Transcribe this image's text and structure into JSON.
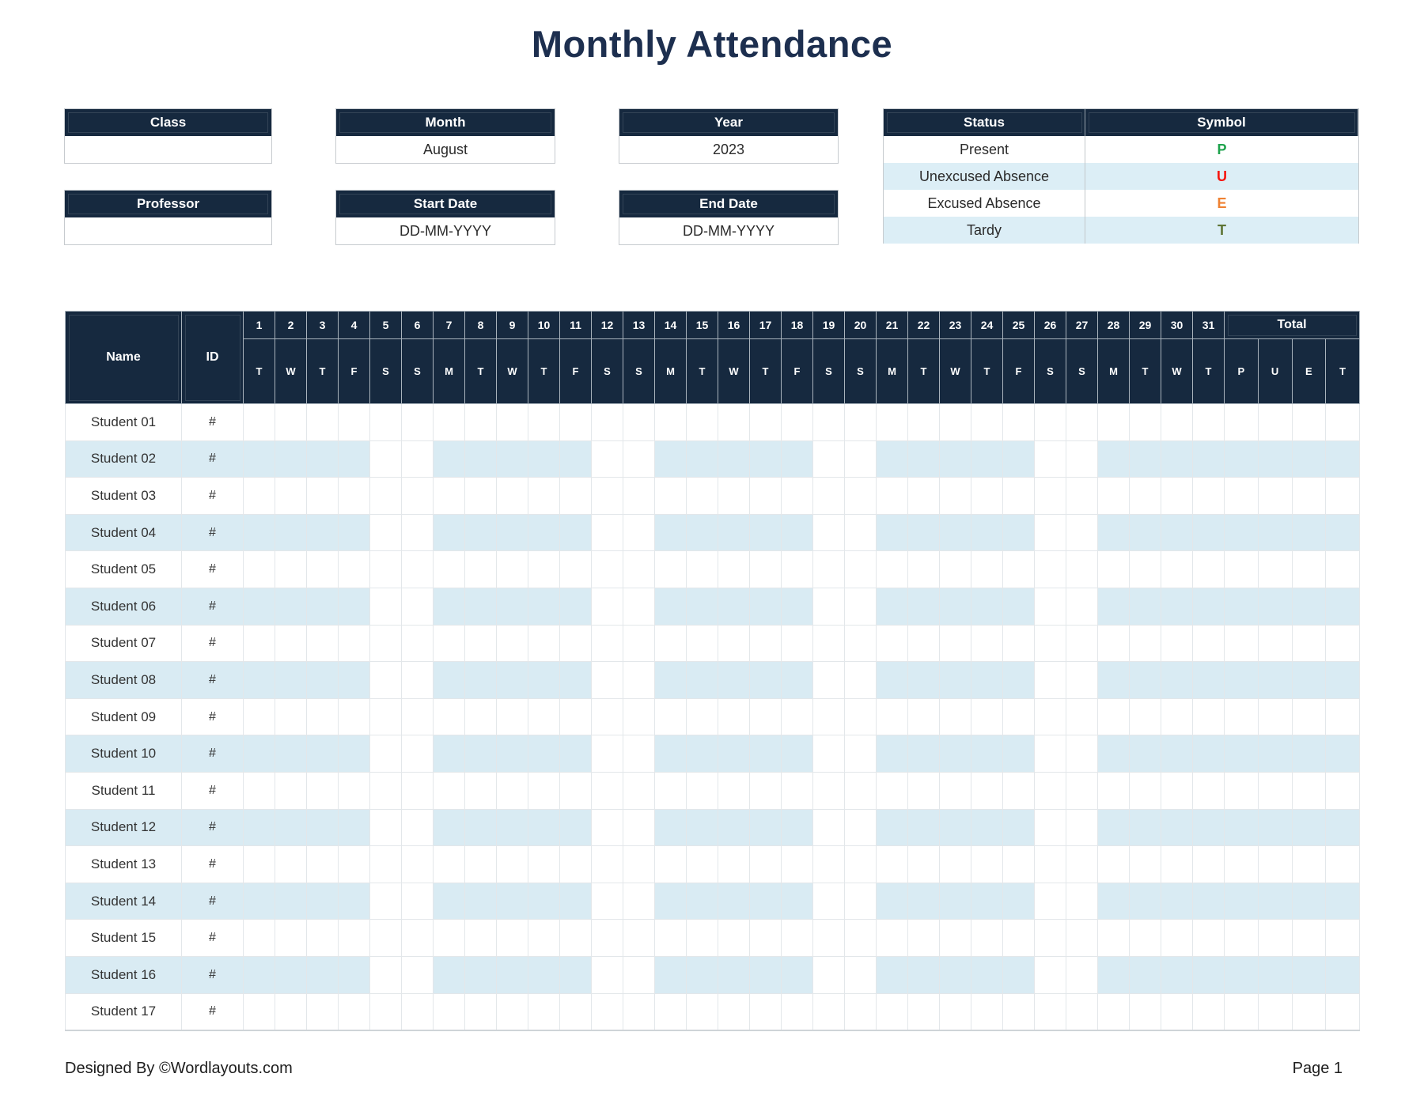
{
  "title": "Monthly Attendance",
  "colors": {
    "navy_header": "#16293f",
    "row_alt_blue": "#d9ebf3",
    "legend_alt_blue": "#dceef6"
  },
  "info_boxes": {
    "class": {
      "label": "Class",
      "value": ""
    },
    "month": {
      "label": "Month",
      "value": "August"
    },
    "year": {
      "label": "Year",
      "value": "2023"
    },
    "professor": {
      "label": "Professor",
      "value": ""
    },
    "start_date": {
      "label": "Start Date",
      "value": "DD-MM-YYYY"
    },
    "end_date": {
      "label": "End Date",
      "value": "DD-MM-YYYY"
    }
  },
  "legend": {
    "headers": {
      "status": "Status",
      "symbol": "Symbol"
    },
    "rows": [
      {
        "status": "Present",
        "symbol": "P",
        "color": "#1fa34d"
      },
      {
        "status": "Unexcused Absence",
        "symbol": "U",
        "color": "#f6150e"
      },
      {
        "status": "Excused Absence",
        "symbol": "E",
        "color": "#ef8233"
      },
      {
        "status": "Tardy",
        "symbol": "T",
        "color": "#5d7434"
      }
    ]
  },
  "attendance_table": {
    "name_header": "Name",
    "id_header": "ID",
    "total_header": "Total",
    "days": [
      1,
      2,
      3,
      4,
      5,
      6,
      7,
      8,
      9,
      10,
      11,
      12,
      13,
      14,
      15,
      16,
      17,
      18,
      19,
      20,
      21,
      22,
      23,
      24,
      25,
      26,
      27,
      28,
      29,
      30,
      31
    ],
    "weekdays": [
      "T",
      "W",
      "T",
      "F",
      "S",
      "S",
      "M",
      "T",
      "W",
      "T",
      "F",
      "S",
      "S",
      "M",
      "T",
      "W",
      "T",
      "F",
      "S",
      "S",
      "M",
      "T",
      "W",
      "T",
      "F",
      "S",
      "S",
      "M",
      "T",
      "W",
      "T"
    ],
    "total_columns": [
      "P",
      "U",
      "E",
      "T"
    ],
    "students": [
      {
        "name": "Student 01",
        "id": "#"
      },
      {
        "name": "Student 02",
        "id": "#"
      },
      {
        "name": "Student 03",
        "id": "#"
      },
      {
        "name": "Student 04",
        "id": "#"
      },
      {
        "name": "Student 05",
        "id": "#"
      },
      {
        "name": "Student 06",
        "id": "#"
      },
      {
        "name": "Student 07",
        "id": "#"
      },
      {
        "name": "Student 08",
        "id": "#"
      },
      {
        "name": "Student 09",
        "id": "#"
      },
      {
        "name": "Student 10",
        "id": "#"
      },
      {
        "name": "Student 11",
        "id": "#"
      },
      {
        "name": "Student 12",
        "id": "#"
      },
      {
        "name": "Student 13",
        "id": "#"
      },
      {
        "name": "Student 14",
        "id": "#"
      },
      {
        "name": "Student 15",
        "id": "#"
      },
      {
        "name": "Student 16",
        "id": "#"
      },
      {
        "name": "Student 17",
        "id": "#"
      }
    ]
  },
  "footer": {
    "left": "Designed By ©Wordlayouts.com",
    "right": "Page 1"
  }
}
